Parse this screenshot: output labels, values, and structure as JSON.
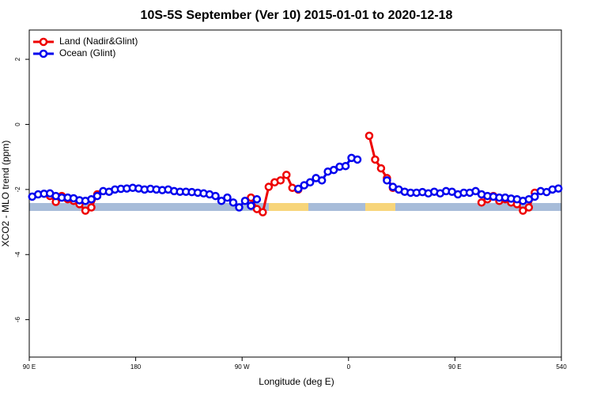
{
  "chart_data": {
    "type": "line",
    "title": "10S-5S September (Ver 10)   2015-01-01 to 2020-12-18",
    "xlabel": "Longitude (deg E)",
    "ylabel": "XCO2 - MLO trend (ppm)",
    "x": [
      92.5,
      97.5,
      102.5,
      107.5,
      112.5,
      117.5,
      122.5,
      127.5,
      132.5,
      137.5,
      142.5,
      147.5,
      152.5,
      157.5,
      162.5,
      167.5,
      172.5,
      177.5,
      182.5,
      187.5,
      192.5,
      197.5,
      202.5,
      207.5,
      212.5,
      217.5,
      222.5,
      227.5,
      232.5,
      237.5,
      242.5,
      247.5,
      252.5,
      257.5,
      262.5,
      267.5,
      272.5,
      277.5,
      282.5,
      287.5,
      292.5,
      297.5,
      302.5,
      307.5,
      312.5,
      317.5,
      322.5,
      327.5,
      332.5,
      337.5,
      342.5,
      347.5,
      352.5,
      357.5,
      362.5,
      367.5,
      372.5,
      377.5,
      382.5,
      387.5,
      392.5,
      397.5,
      402.5,
      407.5,
      412.5,
      417.5,
      422.5,
      427.5,
      432.5,
      437.5,
      442.5,
      447.5,
      452.5,
      457.5,
      462.5,
      467.5,
      472.5,
      477.5,
      482.5,
      487.5,
      492.5,
      497.5,
      502.5,
      507.5,
      512.5,
      517.5,
      522.5,
      527.5,
      532.5,
      537.5
    ],
    "series": [
      {
        "name": "Land (Nadir&Glint)",
        "color": "#ee0000",
        "values": [
          null,
          null,
          null,
          -2.2,
          -2.38,
          -2.2,
          -2.3,
          -2.35,
          -2.45,
          -2.65,
          -2.55,
          -2.15,
          null,
          null,
          null,
          null,
          null,
          null,
          null,
          null,
          null,
          null,
          null,
          null,
          null,
          null,
          null,
          null,
          null,
          null,
          null,
          null,
          null,
          null,
          null,
          null,
          null,
          -2.25,
          -2.6,
          -2.7,
          -1.92,
          -1.78,
          -1.72,
          -1.55,
          -1.95,
          -2.0,
          null,
          null,
          null,
          null,
          null,
          null,
          null,
          null,
          null,
          null,
          null,
          -0.35,
          -1.08,
          -1.35,
          -1.65,
          -1.95,
          null,
          null,
          null,
          null,
          null,
          null,
          null,
          null,
          null,
          null,
          null,
          null,
          null,
          null,
          -2.4,
          -2.3,
          -2.2,
          -2.35,
          -2.3,
          -2.4,
          -2.45,
          -2.65,
          -2.55,
          -2.1,
          null,
          null,
          null,
          null
        ]
      },
      {
        "name": "Ocean (Glint)",
        "color": "#0000ee",
        "values": [
          -2.22,
          -2.15,
          -2.13,
          -2.12,
          -2.2,
          -2.25,
          -2.25,
          -2.27,
          -2.33,
          -2.35,
          -2.3,
          -2.2,
          -2.05,
          -2.07,
          -2.0,
          -1.98,
          -1.97,
          -1.95,
          -1.97,
          -2.0,
          -1.98,
          -2.0,
          -2.02,
          -2.0,
          -2.05,
          -2.07,
          -2.07,
          -2.08,
          -2.1,
          -2.12,
          -2.15,
          -2.2,
          -2.35,
          -2.25,
          -2.4,
          -2.55,
          -2.35,
          -2.5,
          -2.3,
          null,
          null,
          null,
          null,
          null,
          null,
          -1.98,
          -1.87,
          -1.78,
          -1.65,
          -1.72,
          -1.45,
          -1.4,
          -1.3,
          -1.28,
          -1.03,
          -1.08,
          null,
          null,
          null,
          null,
          -1.72,
          -1.92,
          -2.0,
          -2.07,
          -2.1,
          -2.1,
          -2.08,
          -2.12,
          -2.07,
          -2.12,
          -2.05,
          -2.07,
          -2.15,
          -2.1,
          -2.1,
          -2.05,
          -2.15,
          -2.2,
          -2.22,
          -2.25,
          -2.25,
          -2.28,
          -2.3,
          -2.35,
          -2.3,
          -2.22,
          -2.05,
          -2.08,
          -2.0,
          -1.97
        ]
      }
    ],
    "xlim": [
      90,
      540
    ],
    "xticks": [
      {
        "value": 90,
        "label": "90 E"
      },
      180,
      {
        "value": 270,
        "label": "90 W"
      },
      {
        "value": 360,
        "label": "0"
      },
      {
        "value": 450,
        "label": "90 E"
      },
      540
    ],
    "ylim": [
      -7.15,
      2.9
    ],
    "yticks": [
      2,
      0,
      -2,
      -4,
      -6
    ],
    "legend": "upper left"
  }
}
